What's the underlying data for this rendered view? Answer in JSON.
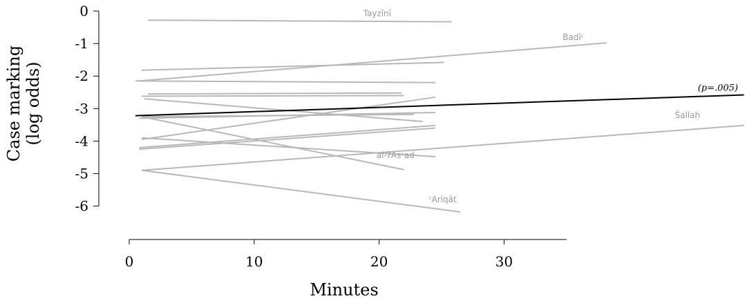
{
  "chart_data": {
    "type": "line",
    "title": "",
    "xlabel": "Minutes",
    "ylabel_lines": [
      "Case marking",
      "(log odds)"
    ],
    "xlim": [
      0,
      35
    ],
    "ylim": [
      -6,
      0
    ],
    "x_ticks": [
      0,
      10,
      20,
      30
    ],
    "x_tick_labels": [
      "0",
      "10",
      "20",
      "30"
    ],
    "y_ticks": [
      0,
      -1,
      -2,
      -3,
      -4,
      -5,
      -6
    ],
    "y_tick_labels": [
      "0",
      "-1",
      "-2",
      "-3",
      "-4",
      "-5",
      "-6"
    ],
    "grid": false,
    "colors": {
      "series": "#b8b8b8",
      "trend": "#000000",
      "axis": "#000000"
    },
    "trend": {
      "label": "(p=.005)",
      "x": [
        0.5,
        49.2
      ],
      "y": [
        -3.22,
        -2.58
      ]
    },
    "series": [
      {
        "name": "Tayzīnī",
        "x": [
          1.5,
          25.8
        ],
        "y": [
          -0.28,
          -0.33
        ]
      },
      {
        "name": "Badīᶜ",
        "x": [
          0.8,
          38.2
        ],
        "y": [
          -2.15,
          -0.98
        ]
      },
      {
        "name": "Šallaḥ",
        "x": [
          1.0,
          49.2
        ],
        "y": [
          -4.9,
          -3.52
        ]
      },
      {
        "name": "al-ʔAsᶜad",
        "x": [
          1.0,
          22.0
        ],
        "y": [
          -3.25,
          -4.88
        ]
      },
      {
        "name": "ᶜAriqāt",
        "x": [
          1.0,
          26.5
        ],
        "y": [
          -4.9,
          -6.18
        ]
      },
      {
        "name": "",
        "x": [
          1.0,
          25.2
        ],
        "y": [
          -1.82,
          -1.58
        ]
      },
      {
        "name": "",
        "x": [
          0.5,
          24.5
        ],
        "y": [
          -2.15,
          -2.2
        ]
      },
      {
        "name": "",
        "x": [
          1.5,
          21.8
        ],
        "y": [
          -2.55,
          -2.52
        ]
      },
      {
        "name": "",
        "x": [
          1.0,
          22.0
        ],
        "y": [
          -2.62,
          -2.6
        ]
      },
      {
        "name": "",
        "x": [
          1.2,
          23.5
        ],
        "y": [
          -2.7,
          -3.4
        ]
      },
      {
        "name": "",
        "x": [
          0.8,
          24.5
        ],
        "y": [
          -3.3,
          -3.12
        ]
      },
      {
        "name": "",
        "x": [
          1.0,
          22.8
        ],
        "y": [
          -3.25,
          -3.18
        ]
      },
      {
        "name": "",
        "x": [
          1.0,
          24.5
        ],
        "y": [
          -3.95,
          -2.65
        ]
      },
      {
        "name": "",
        "x": [
          1.0,
          24.5
        ],
        "y": [
          -3.9,
          -4.48
        ]
      },
      {
        "name": "",
        "x": [
          0.8,
          24.5
        ],
        "y": [
          -4.2,
          -3.52
        ]
      },
      {
        "name": "",
        "x": [
          0.8,
          24.5
        ],
        "y": [
          -4.25,
          -3.6
        ]
      }
    ]
  }
}
